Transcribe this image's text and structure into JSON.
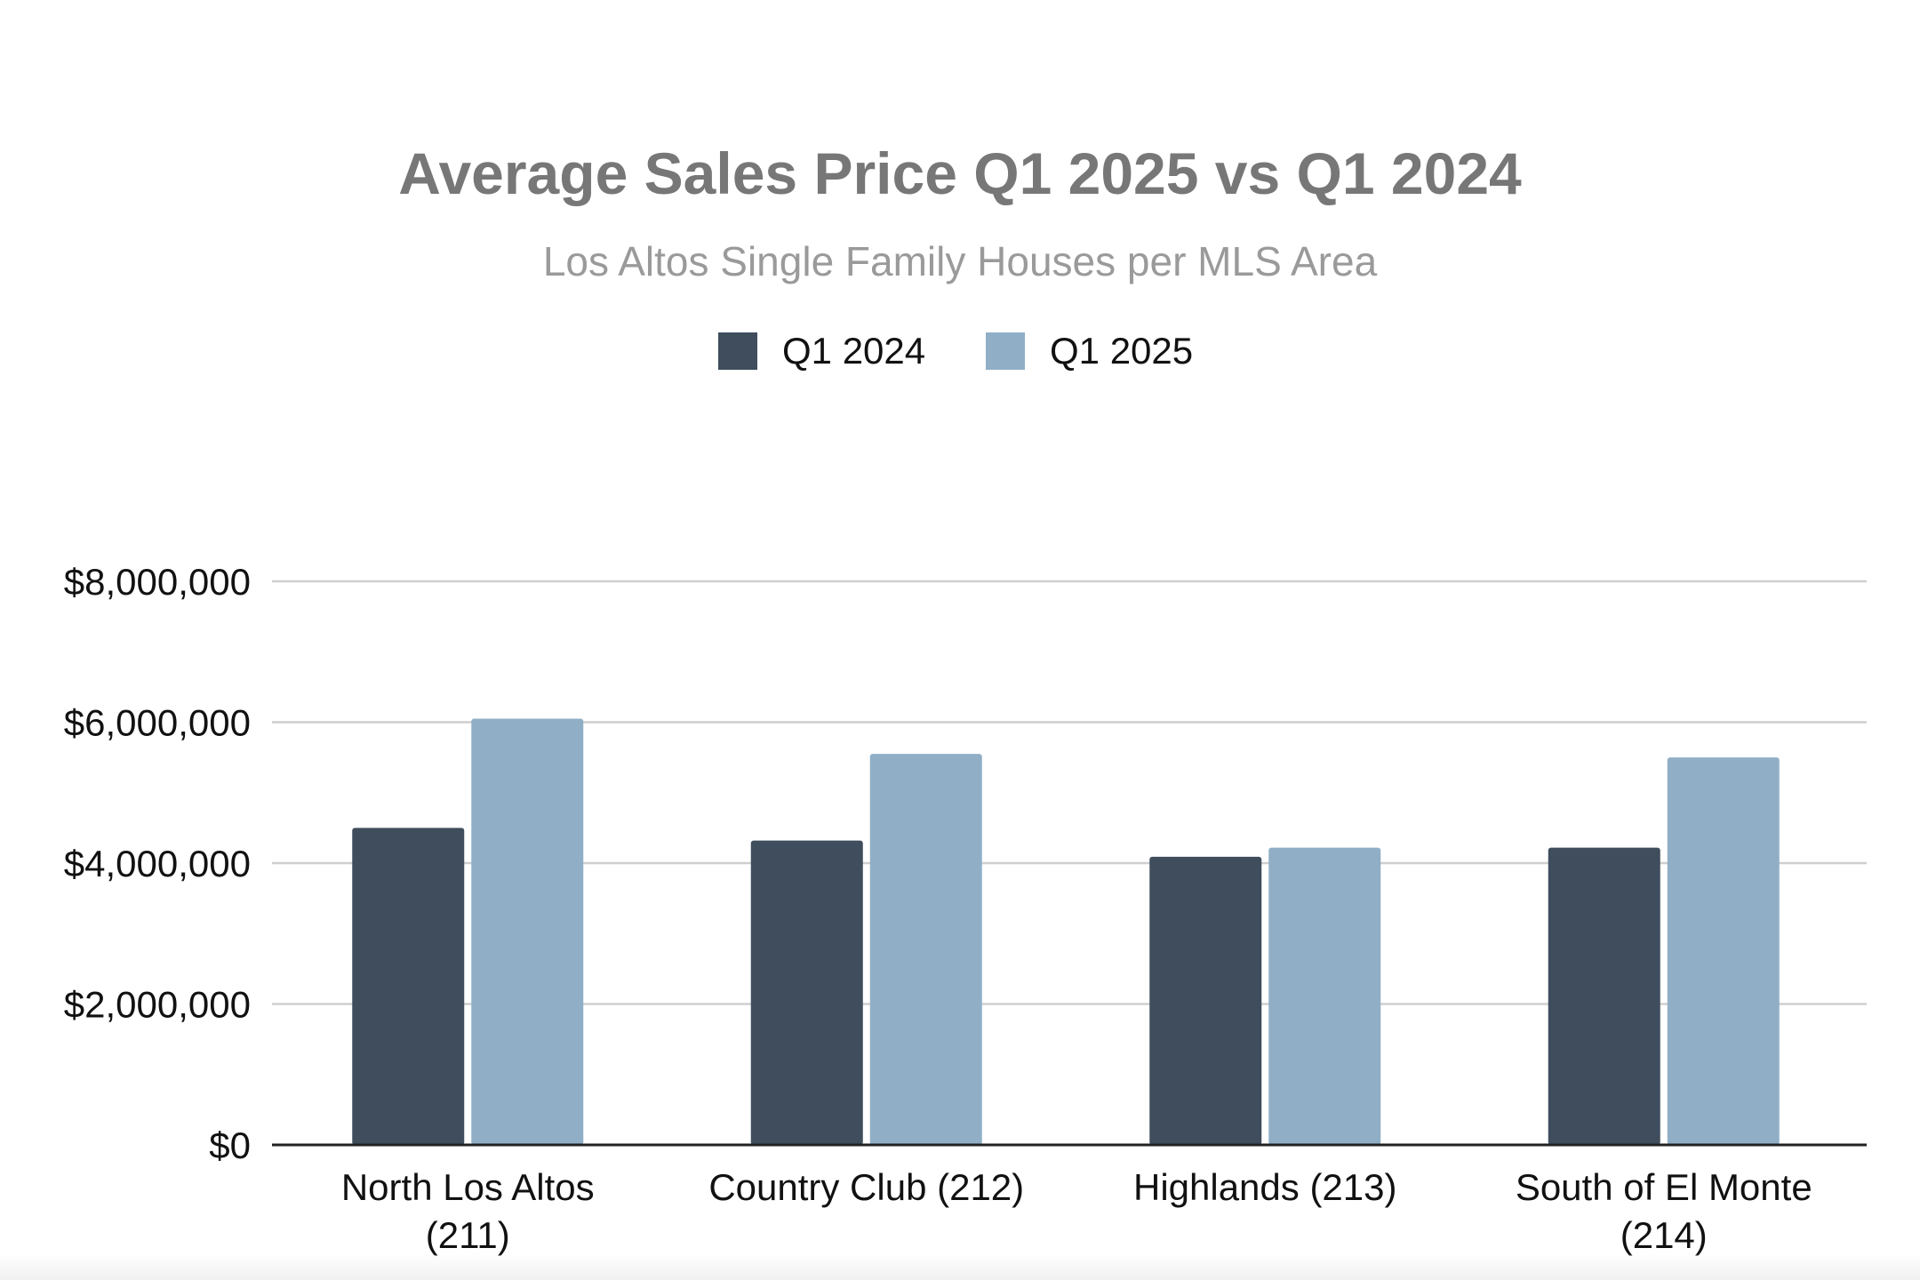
{
  "chart_data": {
    "type": "bar",
    "title": "Average Sales Price Q1 2025 vs Q1 2024",
    "subtitle": "Los Altos Single Family Houses per MLS Area",
    "categories": [
      [
        "North Los Altos",
        "(211)"
      ],
      [
        "Country Club (212)"
      ],
      [
        "Highlands (213)"
      ],
      [
        "South of El Monte",
        "(214)"
      ]
    ],
    "series": [
      {
        "name": "Q1 2024",
        "color": "#3f4d5d",
        "values": [
          4500000,
          4320000,
          4090000,
          4220000
        ]
      },
      {
        "name": "Q1 2025",
        "color": "#90afc6",
        "values": [
          6050000,
          5550000,
          4220000,
          5500000
        ]
      }
    ],
    "yticks": [
      "$0",
      "$2,000,000",
      "$4,000,000",
      "$6,000,000",
      "$8,000,000"
    ],
    "ylim": [
      0,
      8000000
    ],
    "grid": true,
    "legend": "top-center"
  },
  "colors": {
    "title": "#777777",
    "subtitle": "#9a9a9a",
    "text": "#111111",
    "grid": "#cfcfcf",
    "axis": "#222222"
  }
}
